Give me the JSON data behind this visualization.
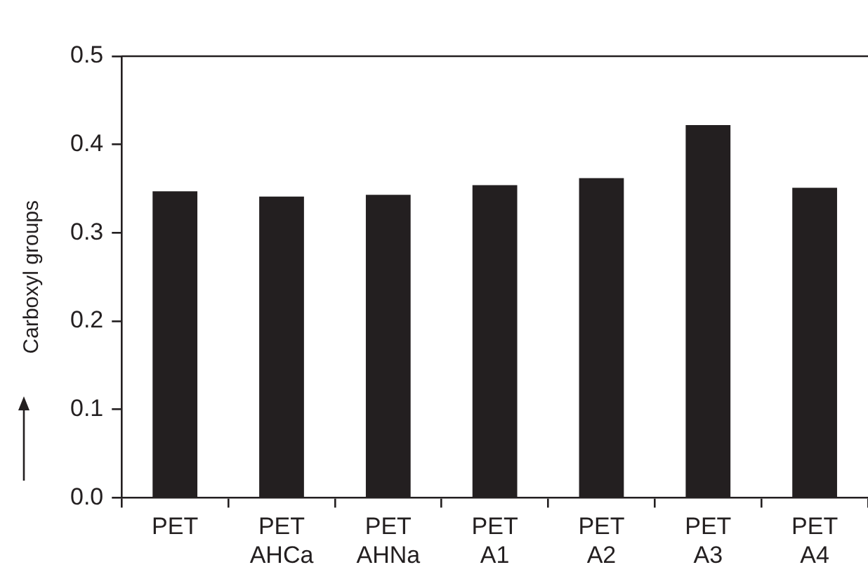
{
  "chart_data": {
    "type": "bar",
    "ylabel": "Carboxyl groups",
    "categories": [
      "PET",
      "PET\nAHCa",
      "PET\nAHNa",
      "PET\nA1",
      "PET\nA2",
      "PET\nA3",
      "PET\nA4"
    ],
    "values": [
      0.347,
      0.341,
      0.343,
      0.354,
      0.362,
      0.422,
      0.351
    ],
    "color": "#231f20",
    "ylim": [
      0,
      0.5
    ],
    "yticks": [
      {
        "value": 0,
        "label": "0.0"
      },
      {
        "value": 0.1,
        "label": "0.1"
      },
      {
        "value": 0.2,
        "label": "0.2"
      },
      {
        "value": 0.3,
        "label": "0.3"
      },
      {
        "value": 0.4,
        "label": "0.4"
      },
      {
        "value": 0.5,
        "label": "0.5"
      }
    ],
    "grid": false,
    "legend": false
  }
}
